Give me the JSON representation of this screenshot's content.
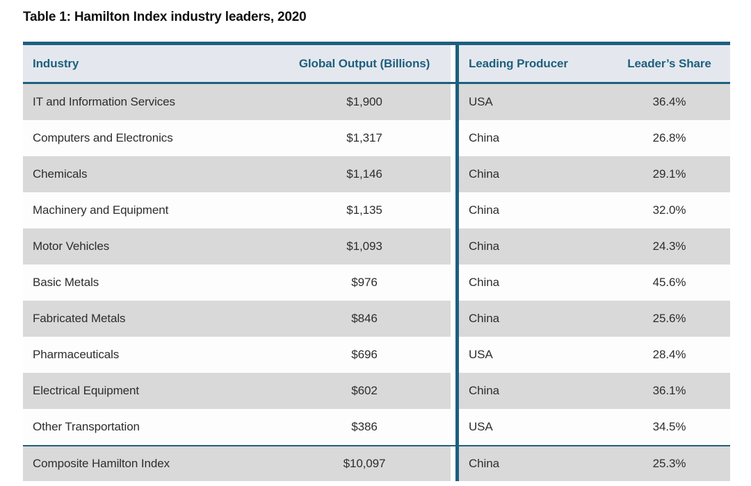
{
  "title": "Table 1: Hamilton Index industry leaders, 2020",
  "colors": {
    "accent": "#1e5f7f",
    "header_bg": "#e4e8ee",
    "row_alt_bg": "#d9d9d9",
    "row_bg": "#fdfdfd",
    "header_text": "#1e5f7f",
    "body_text": "#2d2d2d"
  },
  "table": {
    "headers": {
      "industry": "Industry",
      "output": "Global Output (Billions)",
      "producer": "Leading Producer",
      "share": "Leader’s Share"
    },
    "rows": [
      {
        "industry": "IT and Information Services",
        "output": "$1,900",
        "producer": "USA",
        "share": "36.4%"
      },
      {
        "industry": "Computers and Electronics",
        "output": "$1,317",
        "producer": "China",
        "share": "26.8%"
      },
      {
        "industry": "Chemicals",
        "output": "$1,146",
        "producer": "China",
        "share": "29.1%"
      },
      {
        "industry": "Machinery and Equipment",
        "output": "$1,135",
        "producer": "China",
        "share": "32.0%"
      },
      {
        "industry": "Motor Vehicles",
        "output": "$1,093",
        "producer": "China",
        "share": "24.3%"
      },
      {
        "industry": "Basic Metals",
        "output": "$976",
        "producer": "China",
        "share": "45.6%"
      },
      {
        "industry": "Fabricated Metals",
        "output": "$846",
        "producer": "China",
        "share": "25.6%"
      },
      {
        "industry": "Pharmaceuticals",
        "output": "$696",
        "producer": "USA",
        "share": "28.4%"
      },
      {
        "industry": "Electrical Equipment",
        "output": "$602",
        "producer": "China",
        "share": "36.1%"
      },
      {
        "industry": "Other Transportation",
        "output": "$386",
        "producer": "USA",
        "share": "34.5%"
      }
    ],
    "composite": {
      "industry": "Composite Hamilton Index",
      "output": "$10,097",
      "producer": "China",
      "share": "25.3%"
    }
  },
  "chart_data": {
    "type": "table",
    "title": "Table 1: Hamilton Index industry leaders, 2020",
    "columns": [
      "Industry",
      "Global Output (Billions)",
      "Leading Producer",
      "Leader's Share"
    ],
    "rows": [
      [
        "IT and Information Services",
        1900,
        "USA",
        36.4
      ],
      [
        "Computers and Electronics",
        1317,
        "China",
        26.8
      ],
      [
        "Chemicals",
        1146,
        "China",
        29.1
      ],
      [
        "Machinery and Equipment",
        1135,
        "China",
        32.0
      ],
      [
        "Motor Vehicles",
        1093,
        "China",
        24.3
      ],
      [
        "Basic Metals",
        976,
        "China",
        45.6
      ],
      [
        "Fabricated Metals",
        846,
        "China",
        25.6
      ],
      [
        "Pharmaceuticals",
        696,
        "USA",
        28.4
      ],
      [
        "Electrical Equipment",
        602,
        "China",
        36.1
      ],
      [
        "Other Transportation",
        386,
        "USA",
        34.5
      ],
      [
        "Composite Hamilton Index",
        10097,
        "China",
        25.3
      ]
    ],
    "units": {
      "global_output": "USD billions",
      "leaders_share": "percent"
    }
  }
}
